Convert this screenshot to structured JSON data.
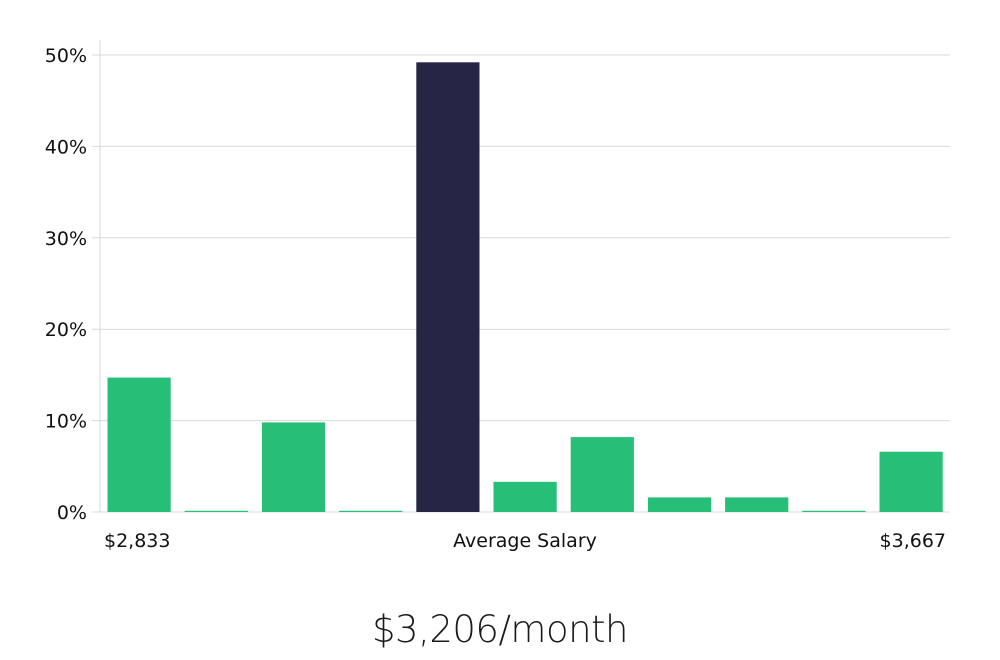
{
  "chart_data": {
    "type": "bar",
    "categories": [
      "1",
      "2",
      "3",
      "4",
      "5",
      "6",
      "7",
      "8",
      "9",
      "10",
      "11"
    ],
    "values": [
      14.7,
      0,
      9.8,
      0,
      49.2,
      3.3,
      8.2,
      1.6,
      1.6,
      0,
      6.6
    ],
    "highlight_index": 4,
    "ylim": [
      0,
      50
    ],
    "yticks": [
      0,
      10,
      20,
      30,
      40,
      50
    ],
    "ytick_format": "%",
    "grid": true,
    "x_labels": {
      "left": "$2,833",
      "center": "Average Salary",
      "right": "$3,667"
    },
    "colors": {
      "bar": "#27be78",
      "highlight": "#272546",
      "grid": "#d9d9d9"
    }
  },
  "caption": "$3,206/month"
}
